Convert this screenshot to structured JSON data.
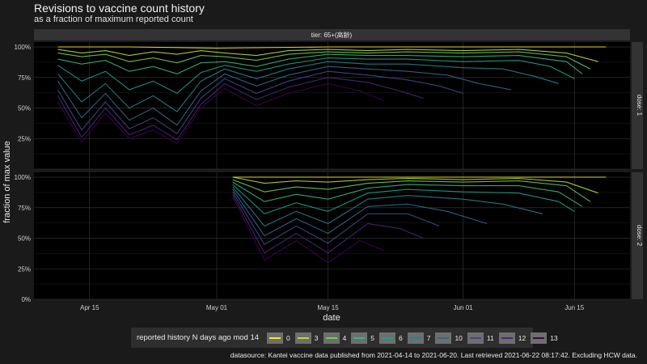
{
  "chart_data": {
    "type": "line",
    "title": "Revisions to vaccine count history",
    "subtitle": "as a fraction of maximum reported count",
    "xlabel": "date",
    "ylabel": "fraction of max value",
    "facet_title": "tier: 65+(高齢)",
    "panels": [
      "dose: 1",
      "dose: 2"
    ],
    "x_ticks": [
      "Apr 15",
      "May 01",
      "May 15",
      "Jun 01",
      "Jun 15"
    ],
    "x_tick_dates": [
      "2021-04-15",
      "2021-05-01",
      "2021-05-15",
      "2021-06-01",
      "2021-06-15"
    ],
    "x_range": [
      "2021-04-08",
      "2021-06-22"
    ],
    "y_ticks": [
      "0%",
      "25%",
      "50%",
      "75%",
      "100%"
    ],
    "y_tick_values": [
      0,
      0.25,
      0.5,
      0.75,
      1.0
    ],
    "ylim": [
      0,
      1.04
    ],
    "grid": true,
    "legend": {
      "title": "reported history N days ago mod 14",
      "position": "bottom",
      "entries": [
        {
          "label": "0",
          "color": "#fde725"
        },
        {
          "label": "3",
          "color": "#b5de2b"
        },
        {
          "label": "4",
          "color": "#6ece58"
        },
        {
          "label": "5",
          "color": "#35b779"
        },
        {
          "label": "6",
          "color": "#1f9e89"
        },
        {
          "label": "7",
          "color": "#26828e"
        },
        {
          "label": "10",
          "color": "#31688e"
        },
        {
          "label": "11",
          "color": "#3e4989"
        },
        {
          "label": "12",
          "color": "#482878"
        },
        {
          "label": "13",
          "color": "#440154"
        }
      ]
    },
    "series_dose1": [
      {
        "group": "0",
        "points": [
          [
            "2021-04-11",
            1.0
          ],
          [
            "2021-04-20",
            1.0
          ],
          [
            "2021-05-01",
            0.99
          ],
          [
            "2021-05-15",
            1.0
          ],
          [
            "2021-06-01",
            1.0
          ],
          [
            "2021-06-19",
            1.0
          ]
        ]
      },
      {
        "group": "3",
        "points": [
          [
            "2021-04-11",
            0.98
          ],
          [
            "2021-04-14",
            0.95
          ],
          [
            "2021-04-17",
            0.97
          ],
          [
            "2021-04-20",
            0.93
          ],
          [
            "2021-04-23",
            0.96
          ],
          [
            "2021-04-26",
            0.94
          ],
          [
            "2021-04-29",
            0.97
          ],
          [
            "2021-05-02",
            0.95
          ],
          [
            "2021-05-06",
            0.93
          ],
          [
            "2021-05-10",
            0.97
          ],
          [
            "2021-05-15",
            0.98
          ],
          [
            "2021-05-20",
            0.97
          ],
          [
            "2021-05-25",
            0.98
          ],
          [
            "2021-06-01",
            0.97
          ],
          [
            "2021-06-08",
            0.98
          ],
          [
            "2021-06-14",
            0.95
          ],
          [
            "2021-06-18",
            0.88
          ]
        ]
      },
      {
        "group": "4",
        "points": [
          [
            "2021-04-11",
            0.95
          ],
          [
            "2021-04-14",
            0.92
          ],
          [
            "2021-04-17",
            0.94
          ],
          [
            "2021-04-20",
            0.88
          ],
          [
            "2021-04-23",
            0.91
          ],
          [
            "2021-04-26",
            0.87
          ],
          [
            "2021-04-29",
            0.93
          ],
          [
            "2021-05-02",
            0.92
          ],
          [
            "2021-05-06",
            0.89
          ],
          [
            "2021-05-10",
            0.94
          ],
          [
            "2021-05-15",
            0.96
          ],
          [
            "2021-05-20",
            0.95
          ],
          [
            "2021-05-25",
            0.96
          ],
          [
            "2021-06-01",
            0.95
          ],
          [
            "2021-06-08",
            0.96
          ],
          [
            "2021-06-14",
            0.92
          ],
          [
            "2021-06-17",
            0.82
          ]
        ]
      },
      {
        "group": "5",
        "points": [
          [
            "2021-04-11",
            0.9
          ],
          [
            "2021-04-14",
            0.86
          ],
          [
            "2021-04-17",
            0.89
          ],
          [
            "2021-04-20",
            0.8
          ],
          [
            "2021-04-23",
            0.84
          ],
          [
            "2021-04-26",
            0.78
          ],
          [
            "2021-04-29",
            0.87
          ],
          [
            "2021-05-02",
            0.88
          ],
          [
            "2021-05-06",
            0.84
          ],
          [
            "2021-05-10",
            0.9
          ],
          [
            "2021-05-15",
            0.94
          ],
          [
            "2021-05-20",
            0.93
          ],
          [
            "2021-05-25",
            0.93
          ],
          [
            "2021-06-01",
            0.92
          ],
          [
            "2021-06-08",
            0.93
          ],
          [
            "2021-06-14",
            0.88
          ],
          [
            "2021-06-16",
            0.78
          ]
        ]
      },
      {
        "group": "6",
        "points": [
          [
            "2021-04-11",
            0.85
          ],
          [
            "2021-04-14",
            0.72
          ],
          [
            "2021-04-17",
            0.8
          ],
          [
            "2021-04-20",
            0.65
          ],
          [
            "2021-04-23",
            0.72
          ],
          [
            "2021-04-26",
            0.62
          ],
          [
            "2021-04-29",
            0.79
          ],
          [
            "2021-05-02",
            0.85
          ],
          [
            "2021-05-06",
            0.8
          ],
          [
            "2021-05-10",
            0.86
          ],
          [
            "2021-05-15",
            0.91
          ],
          [
            "2021-05-20",
            0.9
          ],
          [
            "2021-05-25",
            0.9
          ],
          [
            "2021-06-01",
            0.88
          ],
          [
            "2021-06-08",
            0.89
          ],
          [
            "2021-06-12",
            0.84
          ],
          [
            "2021-06-15",
            0.74
          ]
        ]
      },
      {
        "group": "7",
        "points": [
          [
            "2021-04-11",
            0.78
          ],
          [
            "2021-04-14",
            0.55
          ],
          [
            "2021-04-17",
            0.7
          ],
          [
            "2021-04-20",
            0.5
          ],
          [
            "2021-04-23",
            0.6
          ],
          [
            "2021-04-26",
            0.47
          ],
          [
            "2021-04-29",
            0.72
          ],
          [
            "2021-05-02",
            0.82
          ],
          [
            "2021-05-06",
            0.74
          ],
          [
            "2021-05-10",
            0.82
          ],
          [
            "2021-05-15",
            0.88
          ],
          [
            "2021-05-20",
            0.86
          ],
          [
            "2021-05-25",
            0.86
          ],
          [
            "2021-06-01",
            0.83
          ],
          [
            "2021-06-06",
            0.82
          ],
          [
            "2021-06-10",
            0.76
          ],
          [
            "2021-06-13",
            0.7
          ]
        ]
      },
      {
        "group": "10",
        "points": [
          [
            "2021-04-11",
            0.72
          ],
          [
            "2021-04-14",
            0.42
          ],
          [
            "2021-04-17",
            0.62
          ],
          [
            "2021-04-20",
            0.4
          ],
          [
            "2021-04-23",
            0.5
          ],
          [
            "2021-04-26",
            0.36
          ],
          [
            "2021-04-29",
            0.64
          ],
          [
            "2021-05-02",
            0.78
          ],
          [
            "2021-05-06",
            0.68
          ],
          [
            "2021-05-10",
            0.77
          ],
          [
            "2021-05-15",
            0.84
          ],
          [
            "2021-05-20",
            0.82
          ],
          [
            "2021-05-25",
            0.8
          ],
          [
            "2021-05-30",
            0.77
          ],
          [
            "2021-06-03",
            0.7
          ],
          [
            "2021-06-07",
            0.65
          ]
        ]
      },
      {
        "group": "11",
        "points": [
          [
            "2021-04-11",
            0.65
          ],
          [
            "2021-04-14",
            0.32
          ],
          [
            "2021-04-17",
            0.55
          ],
          [
            "2021-04-20",
            0.33
          ],
          [
            "2021-04-23",
            0.42
          ],
          [
            "2021-04-26",
            0.29
          ],
          [
            "2021-04-29",
            0.58
          ],
          [
            "2021-05-02",
            0.74
          ],
          [
            "2021-05-06",
            0.62
          ],
          [
            "2021-05-10",
            0.72
          ],
          [
            "2021-05-15",
            0.8
          ],
          [
            "2021-05-20",
            0.77
          ],
          [
            "2021-05-25",
            0.73
          ],
          [
            "2021-05-29",
            0.68
          ],
          [
            "2021-06-01",
            0.62
          ]
        ]
      },
      {
        "group": "12",
        "points": [
          [
            "2021-04-11",
            0.6
          ],
          [
            "2021-04-14",
            0.26
          ],
          [
            "2021-04-17",
            0.5
          ],
          [
            "2021-04-20",
            0.28
          ],
          [
            "2021-04-23",
            0.36
          ],
          [
            "2021-04-26",
            0.24
          ],
          [
            "2021-04-29",
            0.53
          ],
          [
            "2021-05-02",
            0.7
          ],
          [
            "2021-05-06",
            0.57
          ],
          [
            "2021-05-10",
            0.67
          ],
          [
            "2021-05-15",
            0.75
          ],
          [
            "2021-05-20",
            0.71
          ],
          [
            "2021-05-24",
            0.64
          ],
          [
            "2021-05-27",
            0.58
          ]
        ]
      },
      {
        "group": "13",
        "points": [
          [
            "2021-04-11",
            0.55
          ],
          [
            "2021-04-14",
            0.22
          ],
          [
            "2021-04-17",
            0.46
          ],
          [
            "2021-04-20",
            0.25
          ],
          [
            "2021-04-23",
            0.32
          ],
          [
            "2021-04-26",
            0.21
          ],
          [
            "2021-04-29",
            0.5
          ],
          [
            "2021-05-02",
            0.66
          ],
          [
            "2021-05-06",
            0.52
          ],
          [
            "2021-05-10",
            0.62
          ],
          [
            "2021-05-15",
            0.7
          ],
          [
            "2021-05-19",
            0.64
          ],
          [
            "2021-05-22",
            0.56
          ]
        ]
      }
    ],
    "series_dose2": [
      {
        "group": "0",
        "points": [
          [
            "2021-05-03",
            1.0
          ],
          [
            "2021-05-15",
            1.0
          ],
          [
            "2021-06-01",
            1.0
          ],
          [
            "2021-06-19",
            1.0
          ]
        ]
      },
      {
        "group": "3",
        "points": [
          [
            "2021-05-03",
            1.0
          ],
          [
            "2021-05-07",
            0.95
          ],
          [
            "2021-05-11",
            0.97
          ],
          [
            "2021-05-15",
            0.96
          ],
          [
            "2021-05-20",
            0.98
          ],
          [
            "2021-05-25",
            0.99
          ],
          [
            "2021-06-01",
            0.98
          ],
          [
            "2021-06-08",
            0.99
          ],
          [
            "2021-06-14",
            0.96
          ],
          [
            "2021-06-18",
            0.87
          ]
        ]
      },
      {
        "group": "4",
        "points": [
          [
            "2021-05-03",
            0.98
          ],
          [
            "2021-05-07",
            0.88
          ],
          [
            "2021-05-11",
            0.92
          ],
          [
            "2021-05-15",
            0.9
          ],
          [
            "2021-05-20",
            0.95
          ],
          [
            "2021-05-25",
            0.97
          ],
          [
            "2021-06-01",
            0.96
          ],
          [
            "2021-06-08",
            0.97
          ],
          [
            "2021-06-14",
            0.93
          ],
          [
            "2021-06-17",
            0.8
          ]
        ]
      },
      {
        "group": "5",
        "points": [
          [
            "2021-05-03",
            0.96
          ],
          [
            "2021-05-07",
            0.8
          ],
          [
            "2021-05-11",
            0.86
          ],
          [
            "2021-05-15",
            0.82
          ],
          [
            "2021-05-20",
            0.91
          ],
          [
            "2021-05-25",
            0.94
          ],
          [
            "2021-06-01",
            0.93
          ],
          [
            "2021-06-08",
            0.93
          ],
          [
            "2021-06-13",
            0.88
          ],
          [
            "2021-06-16",
            0.76
          ]
        ]
      },
      {
        "group": "6",
        "points": [
          [
            "2021-05-03",
            0.94
          ],
          [
            "2021-05-07",
            0.7
          ],
          [
            "2021-05-11",
            0.79
          ],
          [
            "2021-05-15",
            0.72
          ],
          [
            "2021-05-20",
            0.87
          ],
          [
            "2021-05-25",
            0.9
          ],
          [
            "2021-06-01",
            0.88
          ],
          [
            "2021-06-08",
            0.87
          ],
          [
            "2021-06-13",
            0.8
          ],
          [
            "2021-06-15",
            0.72
          ]
        ]
      },
      {
        "group": "7",
        "points": [
          [
            "2021-05-03",
            0.92
          ],
          [
            "2021-05-07",
            0.6
          ],
          [
            "2021-05-11",
            0.72
          ],
          [
            "2021-05-15",
            0.62
          ],
          [
            "2021-05-20",
            0.82
          ],
          [
            "2021-05-25",
            0.85
          ],
          [
            "2021-06-01",
            0.82
          ],
          [
            "2021-06-06",
            0.78
          ],
          [
            "2021-06-11",
            0.7
          ]
        ]
      },
      {
        "group": "10",
        "points": [
          [
            "2021-05-03",
            0.9
          ],
          [
            "2021-05-07",
            0.52
          ],
          [
            "2021-05-11",
            0.66
          ],
          [
            "2021-05-15",
            0.54
          ],
          [
            "2021-05-20",
            0.76
          ],
          [
            "2021-05-25",
            0.78
          ],
          [
            "2021-05-30",
            0.72
          ],
          [
            "2021-06-04",
            0.62
          ]
        ]
      },
      {
        "group": "11",
        "points": [
          [
            "2021-05-03",
            0.88
          ],
          [
            "2021-05-07",
            0.45
          ],
          [
            "2021-05-11",
            0.6
          ],
          [
            "2021-05-15",
            0.46
          ],
          [
            "2021-05-20",
            0.7
          ],
          [
            "2021-05-25",
            0.7
          ],
          [
            "2021-05-29",
            0.6
          ]
        ]
      },
      {
        "group": "12",
        "points": [
          [
            "2021-05-03",
            0.86
          ],
          [
            "2021-05-07",
            0.38
          ],
          [
            "2021-05-11",
            0.54
          ],
          [
            "2021-05-15",
            0.38
          ],
          [
            "2021-05-20",
            0.62
          ],
          [
            "2021-05-24",
            0.58
          ],
          [
            "2021-05-27",
            0.5
          ]
        ]
      },
      {
        "group": "13",
        "points": [
          [
            "2021-05-03",
            0.84
          ],
          [
            "2021-05-07",
            0.32
          ],
          [
            "2021-05-11",
            0.48
          ],
          [
            "2021-05-15",
            0.3
          ],
          [
            "2021-05-19",
            0.48
          ],
          [
            "2021-05-22",
            0.4
          ]
        ]
      }
    ],
    "caption": "datasource: Kantei vaccine data published from 2021-04-14 to 2021-06-20. Last retrieved 2021-06-22 08:17:42. Excluding HCW data."
  }
}
